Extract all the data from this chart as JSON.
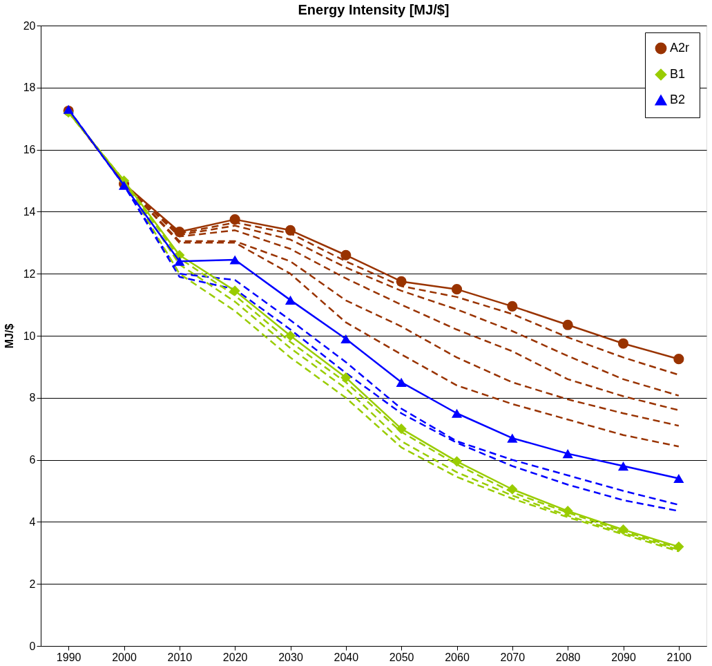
{
  "chart_data": {
    "type": "line",
    "title": "Energy Intensity [MJ/$]",
    "ylabel": "MJ/$",
    "categories": [
      "1990",
      "2000",
      "2010",
      "2020",
      "2030",
      "2040",
      "2050",
      "2060",
      "2070",
      "2080",
      "2090",
      "2100"
    ],
    "ylim": [
      0,
      20
    ],
    "yticks": [
      0,
      2,
      4,
      6,
      8,
      10,
      12,
      14,
      16,
      18,
      20
    ],
    "grid": "y",
    "legend": "top right",
    "series": [
      {
        "color": "#993300",
        "line_style": "dashed",
        "marker": "none",
        "values": [
          17.25,
          14.9,
          13.3,
          13.65,
          13.3,
          12.4,
          11.6,
          11.25,
          10.7,
          9.95,
          9.3,
          8.74
        ]
      },
      {
        "color": "#993300",
        "line_style": "dashed",
        "marker": "none",
        "values": [
          17.25,
          14.9,
          13.25,
          13.55,
          13.1,
          12.2,
          11.45,
          10.85,
          10.15,
          9.35,
          8.6,
          8.07
        ]
      },
      {
        "color": "#993300",
        "line_style": "dashed",
        "marker": "none",
        "values": [
          17.25,
          14.9,
          13.2,
          13.4,
          12.8,
          11.85,
          11.0,
          10.2,
          9.5,
          8.6,
          8.05,
          7.6
        ]
      },
      {
        "color": "#993300",
        "line_style": "dashed",
        "marker": "none",
        "values": [
          17.25,
          14.9,
          13.05,
          13.05,
          12.4,
          11.14,
          10.3,
          9.3,
          8.5,
          7.95,
          7.5,
          7.1
        ]
      },
      {
        "color": "#993300",
        "line_style": "dashed",
        "marker": "none",
        "values": [
          17.25,
          14.9,
          13.0,
          13.0,
          12.0,
          10.43,
          9.4,
          8.4,
          7.8,
          7.3,
          6.8,
          6.43
        ]
      },
      {
        "color": "#0000ff",
        "line_style": "dashed",
        "marker": "none",
        "values": [
          17.3,
          14.85,
          12.0,
          11.8,
          10.5,
          9.15,
          7.65,
          6.6,
          6.0,
          5.5,
          5.0,
          4.55
        ]
      },
      {
        "color": "#0000ff",
        "line_style": "dashed",
        "marker": "none",
        "values": [
          17.3,
          14.85,
          11.9,
          11.5,
          10.2,
          8.8,
          7.5,
          6.55,
          5.8,
          5.2,
          4.7,
          4.35
        ]
      },
      {
        "color": "#99cc00",
        "line_style": "dashed",
        "marker": "none",
        "values": [
          17.2,
          15.0,
          12.5,
          11.3,
          9.8,
          8.5,
          6.9,
          5.85,
          4.95,
          4.3,
          3.7,
          3.15
        ]
      },
      {
        "color": "#99cc00",
        "line_style": "dashed",
        "marker": "none",
        "values": [
          17.2,
          15.0,
          12.3,
          11.1,
          9.6,
          8.3,
          6.6,
          5.6,
          4.85,
          4.2,
          3.65,
          3.1
        ]
      },
      {
        "color": "#99cc00",
        "line_style": "dashed",
        "marker": "none",
        "values": [
          17.2,
          15.0,
          12.0,
          10.8,
          9.3,
          8.0,
          6.4,
          5.45,
          4.75,
          4.15,
          3.6,
          3.05
        ]
      },
      {
        "name": "A2r",
        "color": "#993300",
        "line_style": "solid",
        "marker": "circle",
        "values": [
          17.25,
          14.9,
          13.35,
          13.75,
          13.4,
          12.6,
          11.75,
          11.5,
          10.95,
          10.35,
          9.75,
          9.25
        ]
      },
      {
        "name": "B1",
        "color": "#99cc00",
        "line_style": "solid",
        "marker": "diamond",
        "values": [
          17.2,
          15.0,
          12.6,
          11.45,
          10.0,
          8.65,
          7.0,
          5.95,
          5.05,
          4.35,
          3.75,
          3.2
        ]
      },
      {
        "name": "B2",
        "color": "#0000ff",
        "line_style": "solid",
        "marker": "triangle",
        "values": [
          17.3,
          14.85,
          12.4,
          12.45,
          11.15,
          9.9,
          8.5,
          7.5,
          6.7,
          6.2,
          5.8,
          5.4
        ]
      }
    ]
  }
}
